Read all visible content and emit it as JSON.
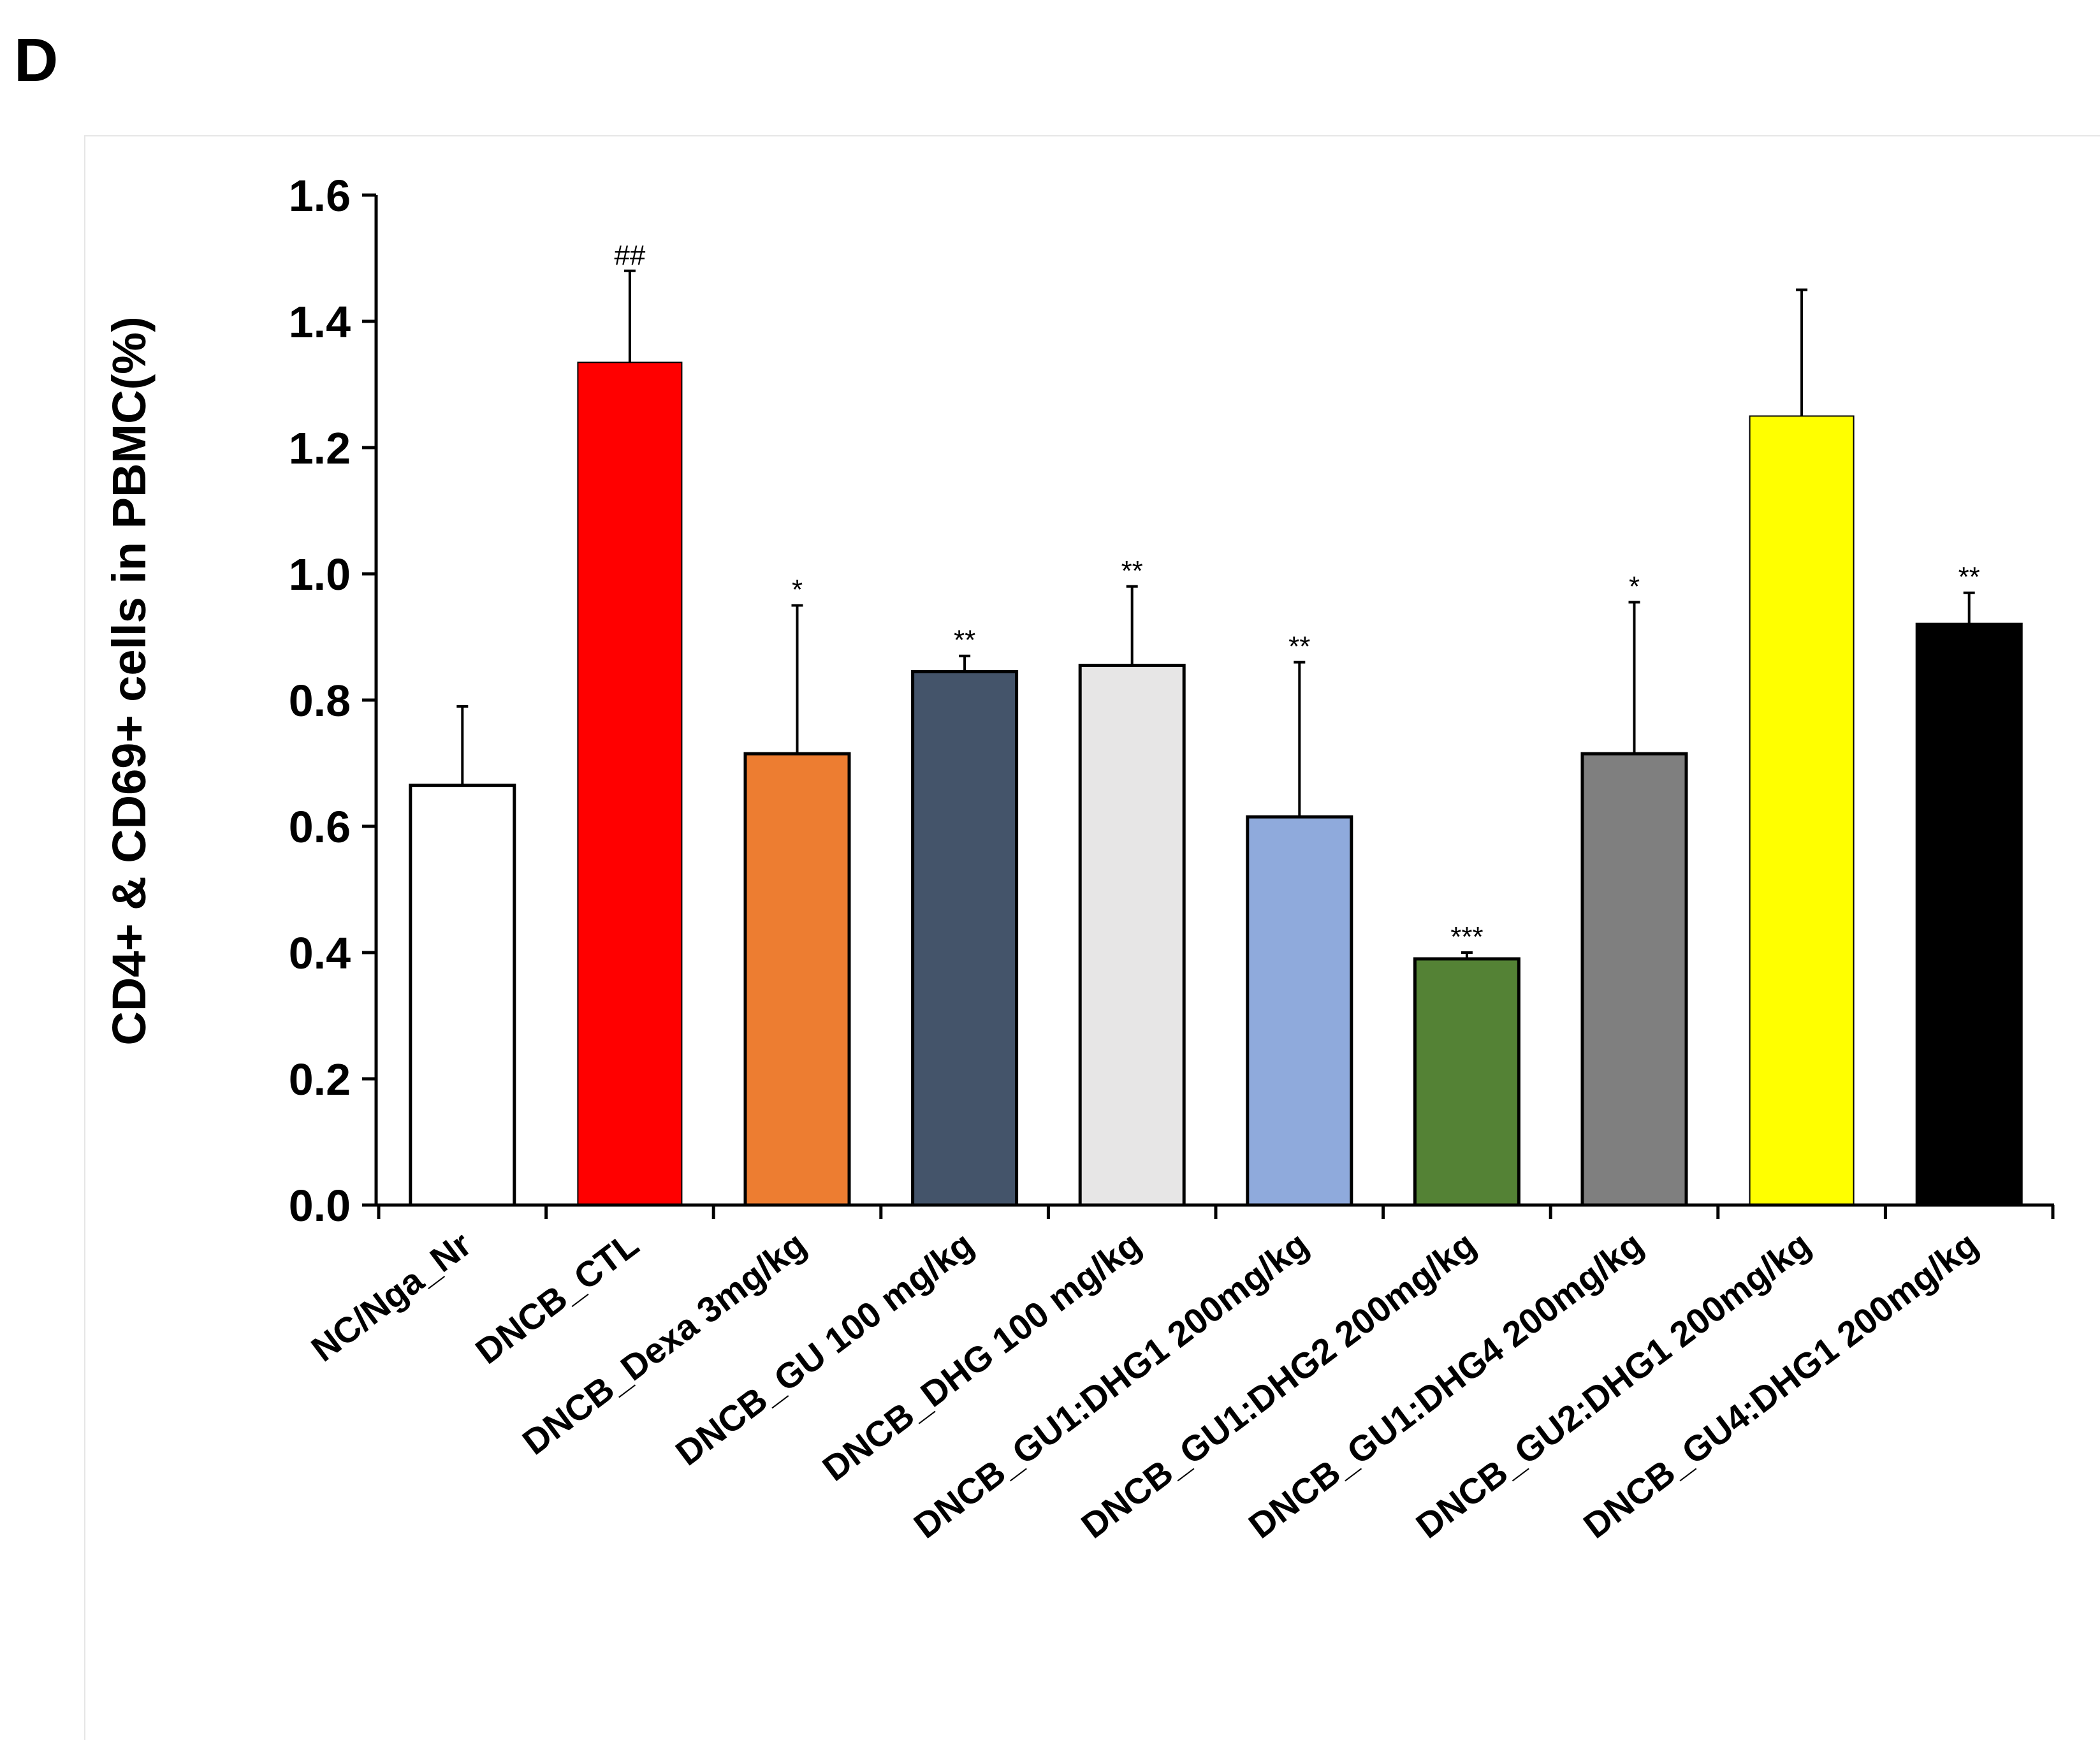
{
  "panel_label": "D",
  "chart_data": {
    "type": "bar",
    "title": "",
    "xlabel": "",
    "ylabel": "CD4+ & CD69+ cells in PBMC(%)",
    "ylim": [
      0,
      1.6
    ],
    "yticks": [
      0.0,
      0.2,
      0.4,
      0.6,
      0.8,
      1.0,
      1.2,
      1.4,
      1.6
    ],
    "ytick_labels": [
      "0.0",
      "0.2",
      "0.4",
      "0.6",
      "0.8",
      "1.0",
      "1.2",
      "1.4",
      "1.6"
    ],
    "grid": false,
    "categories": [
      "NC/Nga_Nr",
      "DNCB_CTL",
      "DNCB_Dexa 3mg/kg",
      "DNCB_GU 100 mg/kg",
      "DNCB_DHG 100 mg/kg",
      "DNCB_GU1:DHG1 200mg/kg",
      "DNCB_GU1:DHG2 200mg/kg",
      "DNCB_GU1:DHG4 200mg/kg",
      "DNCB_GU2:DHG1 200mg/kg",
      "DNCB_GU4:DHG1 200mg/kg"
    ],
    "values": [
      0.665,
      1.335,
      0.715,
      0.845,
      0.855,
      0.615,
      0.39,
      0.715,
      1.25,
      0.92
    ],
    "error_upper": [
      0.79,
      1.48,
      0.95,
      0.87,
      0.98,
      0.86,
      0.4,
      0.955,
      1.45,
      0.97
    ],
    "significance": [
      "",
      "##",
      "*",
      "**",
      "**",
      "**",
      "***",
      "*",
      "",
      "**"
    ],
    "colors": [
      "#ffffff",
      "#ff0000",
      "#ed7d31",
      "#44546a",
      "#e7e6e6",
      "#8faadc",
      "#548235",
      "#7f7f7f",
      "#ffff00",
      "#000000"
    ]
  }
}
